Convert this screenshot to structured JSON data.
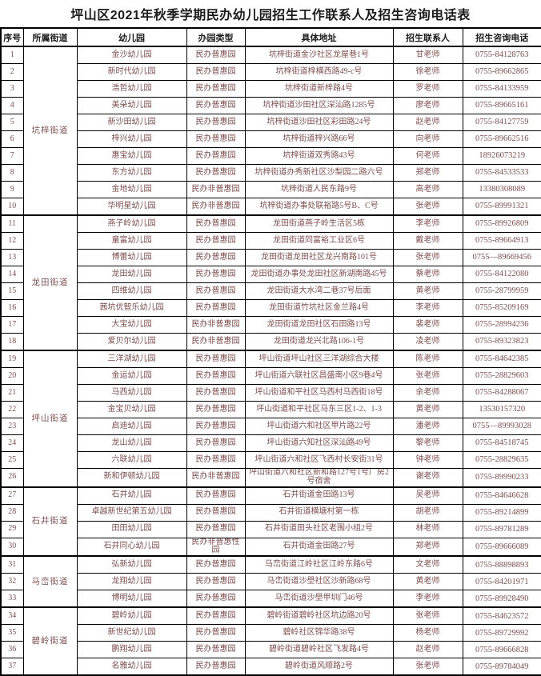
{
  "title": "坪山区2021年秋季学期民办幼儿园招生工作联系人及招生咨询电话表",
  "columns": [
    "序号",
    "所属街道",
    "幼儿园",
    "办园类型",
    "具体地址",
    "招生联系人",
    "招生咨询电话"
  ],
  "colors": {
    "body_text": "#7d4e4e",
    "header_text": "#1c1c1c",
    "border": "#000000",
    "background": "#ffffff"
  },
  "street_groups": [
    {
      "street": "坑梓街道",
      "rows": [
        {
          "no": "1",
          "name": "金沙幼儿园",
          "type": "民办普惠园",
          "address": "坑梓街道金沙社区龙屋巷1号",
          "contact": "甘老师",
          "phone": "0755-84128763"
        },
        {
          "no": "2",
          "name": "新时代幼儿园",
          "type": "民办普惠园",
          "address": "坑梓街道梓横西路49-c号",
          "contact": "徐老师",
          "phone": "0755-89662865"
        },
        {
          "no": "3",
          "name": "浩哲幼儿园",
          "type": "民办普惠园",
          "address": "坑梓街道新梓路4号",
          "contact": "罗老师",
          "phone": "0755-84133959"
        },
        {
          "no": "4",
          "name": "美朵幼儿园",
          "type": "民办普惠园",
          "address": "坑梓街道沙田社区深汕路1285号",
          "contact": "廖老师",
          "phone": "0755-89665161"
        },
        {
          "no": "5",
          "name": "新沙田幼儿园",
          "type": "民办普惠园",
          "address": "坑梓街道沙田社区彩田路24号",
          "contact": "赵老师",
          "phone": "0755-84127759"
        },
        {
          "no": "6",
          "name": "梓兴幼儿园",
          "type": "民办普惠园",
          "address": "坑梓街道梓兴路66号",
          "contact": "向老师",
          "phone": "0755-89662516"
        },
        {
          "no": "7",
          "name": "惠宝幼儿园",
          "type": "民办普惠园",
          "address": "坑梓街道双秀路43号",
          "contact": "何老师",
          "phone": "18926073219"
        },
        {
          "no": "8",
          "name": "东方幼儿园",
          "type": "民办普惠园",
          "address": "坑梓街道办秀新社区沙梨园二路六号",
          "contact": "郑老师",
          "phone": "0755-84533533"
        },
        {
          "no": "9",
          "name": "金地幼儿园",
          "type": "民办非普惠园",
          "address": "坑梓街道人民东路9号",
          "contact": "高老师",
          "phone": "13380308089"
        },
        {
          "no": "10",
          "name": "华明星幼儿园",
          "type": "民办非普惠园",
          "address": "坑梓街道办事处联裕路5号B、C号",
          "contact": "张老师",
          "phone": "0755-89991321"
        }
      ]
    },
    {
      "street": "龙田街道",
      "rows": [
        {
          "no": "11",
          "name": "燕子岭幼儿园",
          "type": "民办普惠园",
          "address": "龙田街道燕子岭生活区5栋",
          "contact": "李老师",
          "phone": "0755-89926809"
        },
        {
          "no": "12",
          "name": "童富幼儿园",
          "type": "民办普惠园",
          "address": "龙田街道同富裕工业区6号",
          "contact": "戴老师",
          "phone": "0755-89664913"
        },
        {
          "no": "13",
          "name": "博蕾幼儿园",
          "type": "民办普惠园",
          "address": "龙田街道龙田社区龙兴南路101号",
          "contact": "张老师",
          "phone": "0755—89669456"
        },
        {
          "no": "14",
          "name": "龙田幼儿园",
          "type": "民办普惠园",
          "address": "龙田街道办事处龙田社区新湖南路45号",
          "contact": "蔡老师",
          "phone": "0755-84122080"
        },
        {
          "no": "15",
          "name": "四维幼儿园",
          "type": "民办普惠园",
          "address": "龙田街道大水湾二巷37号后面",
          "contact": "黄老师",
          "phone": "0755-28799959"
        },
        {
          "no": "16",
          "name": "茜坑优智乐幼儿园",
          "type": "民办普惠园",
          "address": "龙田街道竹坑社区金兰路4号",
          "contact": "李老师",
          "phone": "0755-85209169"
        },
        {
          "no": "17",
          "name": "大宝幼儿园",
          "type": "民办非普惠园",
          "address": "龙田街道龙田社区石田路13号",
          "contact": "裴老师",
          "phone": "0755-28994236"
        },
        {
          "no": "18",
          "name": "爱贝尔幼儿园",
          "type": "民办非普惠园",
          "address": "龙田街道龙兴北路106-1号",
          "contact": "凌老师",
          "phone": "0755-89323823"
        }
      ]
    },
    {
      "street": "坪山街道",
      "rows": [
        {
          "no": "19",
          "name": "三洋湖幼儿园",
          "type": "民办普惠园",
          "address": "坪山街道坪山社区三洋湖综合大楼",
          "contact": "陈老师",
          "phone": "0755-84642385"
        },
        {
          "no": "20",
          "name": "金运幼儿园",
          "type": "民办普惠园",
          "address": "坪山街道六联社区昌盛南小区9巷4号",
          "contact": "张老师",
          "phone": "0755-28829603"
        },
        {
          "no": "21",
          "name": "马西幼儿园",
          "type": "民办普惠园",
          "address": "坪山街道和平社区马西村马西街18号",
          "contact": "余老师",
          "phone": "0755-84288067"
        },
        {
          "no": "22",
          "name": "金宝贝幼儿园",
          "type": "民办普惠园",
          "address": "坪山街道和平社区马东三区1-2、1-3",
          "contact": "黄老师",
          "phone": "13530157320"
        },
        {
          "no": "23",
          "name": "启迪幼儿园",
          "type": "民办普惠园",
          "address": "坪山街道六和社区甲片路22号",
          "contact": "潘老师",
          "phone": "0755—89993028"
        },
        {
          "no": "24",
          "name": "龙山幼儿园",
          "type": "民办普惠园",
          "address": "坪山街道六知社区深汕路49号",
          "contact": "黎老师",
          "phone": "0755-84518745"
        },
        {
          "no": "25",
          "name": "六联幼儿园",
          "type": "民办普惠园",
          "address": "坪山街道六和社区飞西村长安街31号",
          "contact": "钟老师",
          "phone": "0755-28829635"
        },
        {
          "no": "26",
          "name": "新和伊顿幼儿园",
          "type": "民办非普惠园",
          "address": "坪山街道六和社区新和路127号1号厂房2号宿舍",
          "contact": "谢老师",
          "phone": "0755-89990233"
        }
      ]
    },
    {
      "street": "石井街道",
      "rows": [
        {
          "no": "27",
          "name": "石井幼儿园",
          "type": "民办普惠园",
          "address": "石井街道金田路13号",
          "contact": "吴老师",
          "phone": "0755-84646628"
        },
        {
          "no": "28",
          "name": "卓越新世纪第五幼儿园",
          "type": "民办普惠园",
          "address": "石井街道横塘村第一栋",
          "contact": "胡老师",
          "phone": "0755-89214899"
        },
        {
          "no": "29",
          "name": "田田幼儿园",
          "type": "民办普惠园",
          "address": "石井街道田头社区老围小组2号",
          "contact": "林老师",
          "phone": "0755-89781289"
        },
        {
          "no": "30",
          "name": "石井同心幼儿园",
          "type": "民办非普惠性园",
          "address": "石井街道金田路27号",
          "contact": "郑老师",
          "phone": "0755-89666089"
        }
      ]
    },
    {
      "street": "马峦街道",
      "rows": [
        {
          "no": "31",
          "name": "弘新幼儿园",
          "type": "民办普惠园",
          "address": "马峦街道江岭社区江岭东路6号",
          "contact": "文老师",
          "phone": "0755-88898893"
        },
        {
          "no": "32",
          "name": "龙翔幼儿园",
          "type": "民办普惠园",
          "address": "马峦街道沙壆社区沙新路68号",
          "contact": "黄老师",
          "phone": "0755-84201971"
        },
        {
          "no": "33",
          "name": "博明幼儿园",
          "type": "民办普惠园",
          "address": "马峦街道沙壆甲圳门46号",
          "contact": "李老师",
          "phone": "0755-89928490"
        }
      ]
    },
    {
      "street": "碧岭街道",
      "rows": [
        {
          "no": "34",
          "name": "碧岭幼儿园",
          "type": "民办普惠园",
          "address": "碧岭街道碧岭社区坑边路20号",
          "contact": "张老师",
          "phone": "0755-84623572"
        },
        {
          "no": "35",
          "name": "新世纪幼儿园",
          "type": "民办普惠园",
          "address": "碧岭社区锦华路38号",
          "contact": "杨老师",
          "phone": "0755-89729992"
        },
        {
          "no": "36",
          "name": "鹏翔幼儿园",
          "type": "民办普惠园",
          "address": "碧岭街道碧岭社区飞发路4号",
          "contact": "赵老师",
          "phone": "0755-89666828"
        },
        {
          "no": "37",
          "name": "名雅幼儿园",
          "type": "民办普惠园",
          "address": "碧岭街道风顺路2号",
          "contact": "张老师",
          "phone": "0755-89784049"
        }
      ]
    }
  ]
}
